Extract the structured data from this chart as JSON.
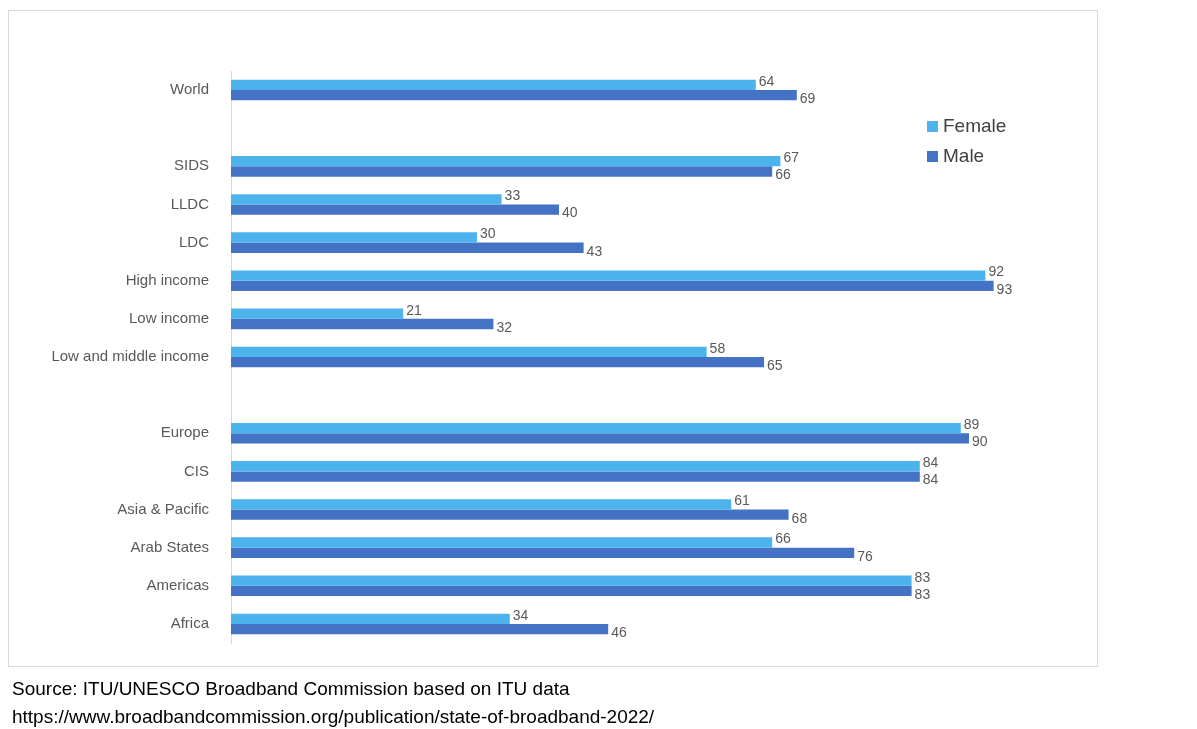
{
  "chart_data": {
    "type": "bar",
    "orientation": "horizontal",
    "categories": [
      "World",
      null,
      "SIDS",
      "LLDC",
      "LDC",
      "High income",
      "Low income",
      "Low and middle income",
      null,
      "Europe",
      "CIS",
      "Asia & Pacific",
      "Arab States",
      "Americas",
      "Africa"
    ],
    "series": [
      {
        "name": "Female",
        "color": "#4db3ec",
        "values": [
          64,
          null,
          67,
          33,
          30,
          92,
          21,
          58,
          null,
          89,
          84,
          61,
          66,
          83,
          34
        ]
      },
      {
        "name": "Male",
        "color": "#4472c4",
        "values": [
          69,
          null,
          66,
          40,
          43,
          93,
          32,
          65,
          null,
          90,
          84,
          68,
          76,
          83,
          46
        ]
      }
    ],
    "tick_labels": "y",
    "data_labels": true,
    "legend": "top right",
    "annotations": [
      "Source: ITU/UNESCO Broadband Commission based on ITU data",
      "https://www.broadbandcommission.org/publication/state-of-broadband-2022/"
    ]
  }
}
